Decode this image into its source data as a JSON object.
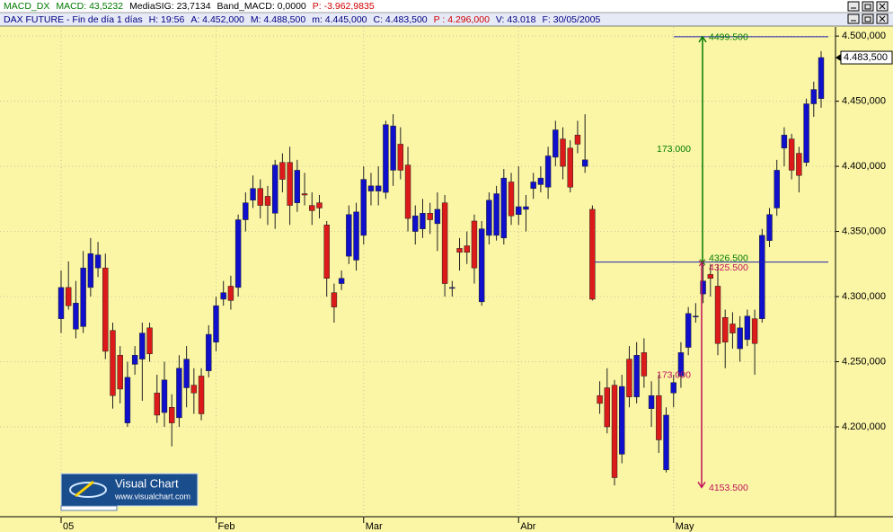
{
  "window": {
    "indicator_line": [
      {
        "text": "MACD_DX",
        "color": "#007a00"
      },
      {
        "text": "MACD: 43,5232",
        "color": "#007a00"
      },
      {
        "text": "MediaSIG: 23,7134",
        "color": "#000000"
      },
      {
        "text": "Band_MACD: 0,0000",
        "color": "#000000"
      },
      {
        "text": "P: -3.962,9835",
        "color": "#d00000"
      }
    ],
    "info_line": [
      {
        "text": "DAX FUTURE - Fin de día 1 días",
        "color": "#000080"
      },
      {
        "text": "H: 19:56",
        "color": "#000080"
      },
      {
        "text": "A: 4.452,000",
        "color": "#000080"
      },
      {
        "text": "M: 4.488,500",
        "color": "#000080"
      },
      {
        "text": "m: 4.445,000",
        "color": "#000080"
      },
      {
        "text": "C: 4.483,500",
        "color": "#000080"
      },
      {
        "text": "P : 4.296,000",
        "color": "#d00000"
      },
      {
        "text": "V: 43.018",
        "color": "#000080"
      },
      {
        "text": "F: 30/05/2005",
        "color": "#000080"
      }
    ]
  },
  "logo": {
    "title": "Visual Chart",
    "url": "www.visualchart.com"
  },
  "chart_data": {
    "type": "candlestick",
    "up_color": "#1010cc",
    "down_color": "#dd1a1a",
    "grid": true,
    "categories": [
      "05",
      null,
      null,
      null,
      null,
      null,
      null,
      null,
      null,
      null,
      null,
      null,
      null,
      null,
      null,
      null,
      null,
      null,
      null,
      null,
      null,
      "Feb",
      null,
      null,
      null,
      null,
      null,
      null,
      null,
      null,
      null,
      null,
      null,
      null,
      null,
      null,
      null,
      null,
      null,
      null,
      null,
      "Mar",
      null,
      null,
      null,
      null,
      null,
      null,
      null,
      null,
      null,
      null,
      null,
      null,
      null,
      null,
      null,
      null,
      null,
      null,
      null,
      null,
      "Abr",
      null,
      null,
      null,
      null,
      null,
      null,
      null,
      null,
      null,
      null,
      null,
      null,
      null,
      null,
      null,
      null,
      null,
      null,
      null,
      null,
      "May",
      null,
      null,
      null,
      null,
      null,
      null,
      null,
      null,
      null,
      null,
      null,
      null,
      null,
      null,
      null,
      null,
      null,
      null,
      null,
      null
    ],
    "open": [
      4283,
      4307,
      4275,
      4277,
      4307,
      4322,
      4322,
      4274,
      4255,
      4203,
      4248,
      4252,
      4276,
      4226,
      4211,
      4215,
      4207,
      4230,
      4232,
      4239,
      4243,
      4265,
      4298,
      4308,
      4307,
      4359,
      4374,
      4383,
      4377,
      4364,
      4403,
      4403,
      4372,
      4379,
      4370,
      4372,
      4355,
      4303,
      4310,
      4331,
      4328,
      4347,
      4381,
      4381,
      4380,
      4397,
      4417,
      4401,
      4350,
      4352,
      4364,
      4356,
      4372,
      4307,
      4337,
      4339,
      4358,
      4296,
      4347,
      4347,
      4345,
      4388,
      4363,
      4367,
      4383,
      4386,
      4384,
      4407,
      4421,
      4414,
      4424,
      4400,
      4367,
      4224,
      4230,
      4232,
      4179,
      4252,
      4223,
      4257,
      4214,
      4224,
      4167,
      4226,
      4239,
      4261,
      4285,
      4302,
      4317,
      4308,
      4284,
      4279,
      4260,
      4267,
      4283,
      4283,
      4343,
      4368,
      4414,
      4421,
      4410,
      4403,
      4448,
      4452
    ],
    "high": [
      4320,
      4327,
      4312,
      4335,
      4345,
      4342,
      4333,
      4280,
      4262,
      4250,
      4262,
      4280,
      4280,
      4240,
      4250,
      4225,
      4255,
      4262,
      4245,
      4245,
      4278,
      4300,
      4312,
      4316,
      4363,
      4380,
      4393,
      4390,
      4385,
      4405,
      4410,
      4415,
      4405,
      4395,
      4380,
      4378,
      4358,
      4310,
      4320,
      4370,
      4372,
      4400,
      4395,
      4400,
      4435,
      4440,
      4430,
      4415,
      4370,
      4375,
      4372,
      4380,
      4378,
      4312,
      4345,
      4350,
      4363,
      4358,
      4380,
      4385,
      4398,
      4395,
      4400,
      4378,
      4395,
      4400,
      4415,
      4435,
      4430,
      4420,
      4435,
      4440,
      4370,
      4235,
      4245,
      4236,
      4240,
      4262,
      4265,
      4268,
      4235,
      4240,
      4215,
      4240,
      4265,
      4292,
      4295,
      4326,
      4325,
      4325,
      4290,
      4288,
      4285,
      4290,
      4290,
      4352,
      4368,
      4405,
      4430,
      4425,
      4415,
      4452,
      4465,
      4488.5
    ],
    "low": [
      4272,
      4290,
      4268,
      4272,
      4300,
      4315,
      4252,
      4214,
      4218,
      4200,
      4240,
      4220,
      4250,
      4203,
      4200,
      4185,
      4200,
      4215,
      4210,
      4205,
      4238,
      4258,
      4293,
      4290,
      4300,
      4350,
      4368,
      4360,
      4355,
      4352,
      4380,
      4355,
      4365,
      4370,
      4355,
      4360,
      4300,
      4280,
      4305,
      4325,
      4320,
      4340,
      4370,
      4370,
      4375,
      4385,
      4390,
      4350,
      4340,
      4345,
      4348,
      4335,
      4300,
      4300,
      4320,
      4325,
      4310,
      4293,
      4340,
      4343,
      4340,
      4355,
      4355,
      4350,
      4375,
      4380,
      4375,
      4400,
      4390,
      4380,
      4410,
      4395,
      4297,
      4210,
      4195,
      4155,
      4172,
      4215,
      4218,
      4230,
      4200,
      4180,
      4165,
      4215,
      4230,
      4255,
      4280,
      4295,
      4300,
      4255,
      4245,
      4260,
      4250,
      4262,
      4240,
      4280,
      4338,
      4362,
      4400,
      4390,
      4380,
      4400,
      4438,
      4445
    ],
    "close": [
      4307,
      4293,
      4295,
      4322,
      4333,
      4332,
      4258,
      4224,
      4229,
      4238,
      4255,
      4272,
      4256,
      4209,
      4236,
      4203,
      4245,
      4252,
      4226,
      4210,
      4271,
      4293,
      4303,
      4297,
      4359,
      4372,
      4383,
      4370,
      4370,
      4401,
      4390,
      4370,
      4397,
      4378,
      4366,
      4368,
      4314,
      4292,
      4314,
      4363,
      4365,
      4390,
      4385,
      4385,
      4432,
      4431,
      4397,
      4360,
      4362,
      4364,
      4359,
      4367,
      4310,
      4307,
      4334,
      4334,
      4322,
      4352,
      4374,
      4379,
      4391,
      4362,
      4369,
      4369,
      4388,
      4391,
      4408,
      4428,
      4400,
      4384,
      4417,
      4405,
      4298,
      4218,
      4200,
      4161,
      4231,
      4223,
      4255,
      4239,
      4224,
      4190,
      4209,
      4234,
      4257,
      4287,
      4285,
      4312,
      4314,
      4264,
      4265,
      4272,
      4276,
      4285,
      4264,
      4347,
      4363,
      4397,
      4424,
      4397,
      4393,
      4448,
      4459,
      4483.5
    ],
    "ylim": [
      4131,
      4507
    ],
    "yticks": [
      {
        "value": 4500,
        "label": "4.500,000"
      },
      {
        "value": 4450,
        "label": "4.450,000"
      },
      {
        "value": 4400,
        "label": "4.400,000"
      },
      {
        "value": 4350,
        "label": "4.350,000"
      },
      {
        "value": 4300,
        "label": "4.300,000"
      },
      {
        "value": 4250,
        "label": "4.250,000"
      },
      {
        "value": 4200,
        "label": "4.200,000"
      }
    ],
    "last_value": {
      "value": 4483.5,
      "label": "4.483,500"
    },
    "measurements": [
      {
        "color": "#007a00",
        "start": {
          "value": 4326.5,
          "label": "4326.500"
        },
        "end": {
          "value": 4499.5,
          "label": "4499.500"
        },
        "diff": {
          "value": 173,
          "label": "173.000"
        }
      },
      {
        "color": "#c0105a",
        "start": {
          "value": 4325.5,
          "label": "4325.500"
        },
        "end": {
          "value": 4153.5,
          "label": "4153.500"
        },
        "diff": {
          "value": 173,
          "label": "173.000"
        }
      }
    ]
  }
}
